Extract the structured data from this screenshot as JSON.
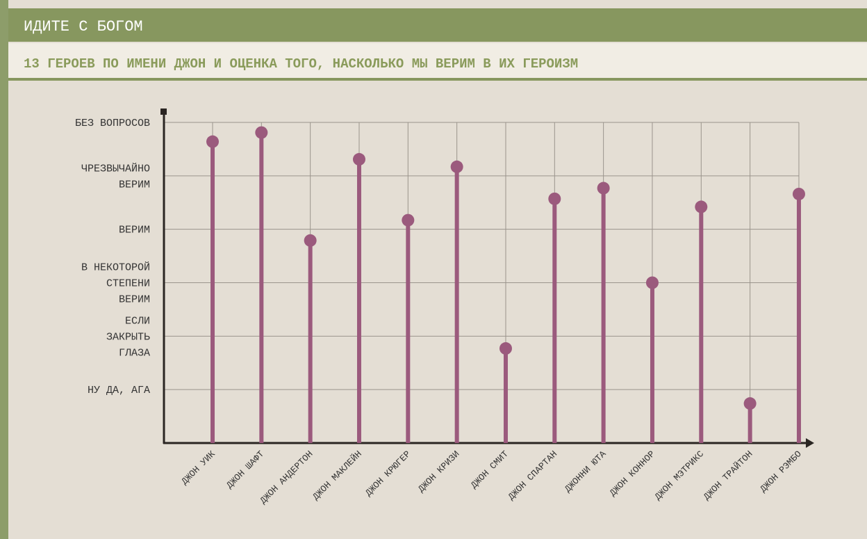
{
  "chart_data": {
    "type": "lollipop",
    "title": "ИДИТЕ С БОГОМ",
    "subtitle": "13 ГЕРОЕВ ПО ИМЕНИ ДЖОН И ОЦЕНКА ТОГО, НАСКОЛЬКО МЫ ВЕРИМ В ИХ ГЕРОИЗМ",
    "categories": [
      "ДЖОН УИК",
      "ДЖОН ШАФТ",
      "ДЖОН АНДЕРТОН",
      "ДЖОН МАКЛЕЙН",
      "ДЖОН КРЮГЕР",
      "ДЖОН КРИЗИ",
      "ДЖОН СМИТ",
      "ДЖОН СПАРТАН",
      "ДЖОННИ ЮТА",
      "ДЖОН КОННОР",
      "ДЖОН МЭТРИКС",
      "ДЖОН ТРАЙТОН",
      "ДЖОН РЭМБО"
    ],
    "values": [
      5.64,
      5.81,
      3.79,
      5.31,
      4.17,
      5.17,
      1.77,
      4.57,
      4.77,
      3.0,
      4.42,
      0.74,
      4.66
    ],
    "color": "#9b5a7d",
    "ylim": [
      0,
      6
    ],
    "yticks": [
      {
        "value": 1,
        "label": "НУ ДА, АГА"
      },
      {
        "value": 2,
        "label": "ЕСЛИ\nЗАКРЫТЬ\nГЛАЗА"
      },
      {
        "value": 3,
        "label": "В НЕКОТОРОЙ\nСТЕПЕНИ\nВЕРИМ"
      },
      {
        "value": 4,
        "label": "ВЕРИМ"
      },
      {
        "value": 5,
        "label": "ЧРЕЗВЫЧАЙНО\nВЕРИМ"
      },
      {
        "value": 6,
        "label": "БЕЗ ВОПРОСОВ"
      }
    ],
    "grid": true
  }
}
